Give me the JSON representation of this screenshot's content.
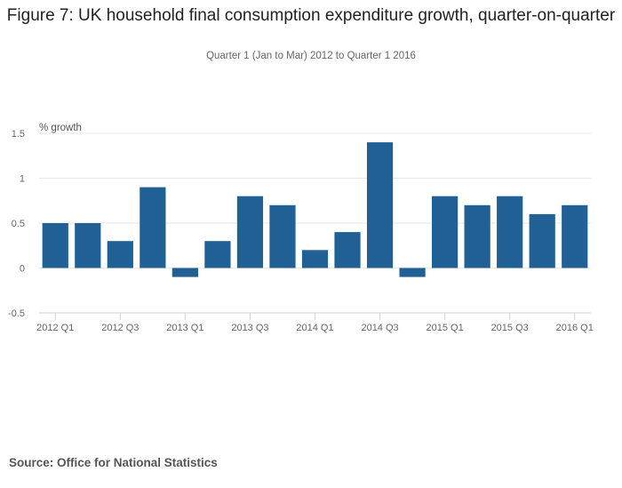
{
  "chart_data": {
    "type": "bar",
    "title": "Figure 7: UK household final consumption expenditure growth, quarter-on-quarter",
    "subtitle": "Quarter 1 (Jan to Mar) 2012 to Quarter 1 2016",
    "xlabel": "",
    "ylabel": "% growth",
    "ylim": [
      -0.5,
      1.5
    ],
    "yticks": [
      -0.5,
      0,
      0.5,
      1,
      1.5
    ],
    "ytick_labels": [
      "-0.5",
      "0",
      "0.5",
      "1",
      "1.5"
    ],
    "grid": true,
    "categories": [
      "2012 Q1",
      "2012 Q2",
      "2012 Q3",
      "2012 Q4",
      "2013 Q1",
      "2013 Q2",
      "2013 Q3",
      "2013 Q4",
      "2014 Q1",
      "2014 Q2",
      "2014 Q3",
      "2014 Q4",
      "2015 Q1",
      "2015 Q2",
      "2015 Q3",
      "2015 Q4",
      "2016 Q1"
    ],
    "xtick_labels_shown": [
      "2012 Q1",
      "2012 Q3",
      "2013 Q1",
      "2013 Q3",
      "2014 Q1",
      "2014 Q3",
      "2015 Q1",
      "2015 Q3",
      "2016 Q1"
    ],
    "values": [
      0.5,
      0.5,
      0.3,
      0.9,
      -0.1,
      0.3,
      0.8,
      0.7,
      0.2,
      0.4,
      1.4,
      -0.1,
      0.8,
      0.7,
      0.8,
      0.6,
      0.7
    ],
    "bar_color": "#206095",
    "source": "Source: Office for National Statistics"
  }
}
